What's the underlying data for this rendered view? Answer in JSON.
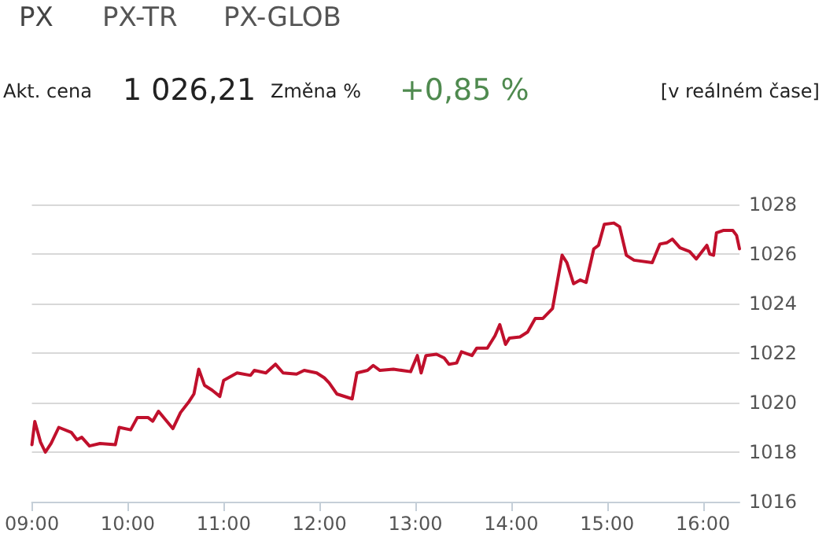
{
  "chart_data": {
    "type": "line",
    "title": "PX",
    "annotations": [
      "PX-TR",
      "PX-GLOB",
      "Akt. cena",
      "1 026,21",
      "Změna %",
      "+0,85 %",
      "[v reálném čase]"
    ],
    "series": [
      {
        "color": "#c0102c",
        "x": [
          9.0,
          9.03,
          9.09,
          9.14,
          9.2,
          9.28,
          9.41,
          9.47,
          9.52,
          9.6,
          9.71,
          9.87,
          9.91,
          10.03,
          10.1,
          10.21,
          10.26,
          10.32,
          10.47,
          10.55,
          10.64,
          10.69,
          10.74,
          10.8,
          10.88,
          10.96,
          11.0,
          11.14,
          11.28,
          11.32,
          11.44,
          11.54,
          11.62,
          11.76,
          11.84,
          11.97,
          12.05,
          12.1,
          12.18,
          12.34,
          12.39,
          12.5,
          12.56,
          12.63,
          12.77,
          12.95,
          13.02,
          13.06,
          13.11,
          13.22,
          13.3,
          13.35,
          13.43,
          13.48,
          13.59,
          13.64,
          13.75,
          13.83,
          13.88,
          13.94,
          13.98,
          14.09,
          14.17,
          14.25,
          14.33,
          14.43,
          14.53,
          14.58,
          14.65,
          14.72,
          14.78,
          14.86,
          14.91,
          14.97,
          15.07,
          15.13,
          15.2,
          15.28,
          15.47,
          15.55,
          15.62,
          15.68,
          15.76,
          15.86,
          15.93,
          16.04,
          16.07,
          16.11,
          16.14,
          16.21,
          16.31,
          16.35,
          16.38
        ],
        "values": [
          1018.3,
          1019.24,
          1018.4,
          1018.0,
          1018.35,
          1019.0,
          1018.8,
          1018.5,
          1018.6,
          1018.25,
          1018.35,
          1018.3,
          1019.0,
          1018.9,
          1019.4,
          1019.4,
          1019.25,
          1019.65,
          1018.95,
          1019.6,
          1020.05,
          1020.35,
          1021.35,
          1020.7,
          1020.5,
          1020.25,
          1020.9,
          1021.2,
          1021.1,
          1021.3,
          1021.2,
          1021.55,
          1021.2,
          1021.15,
          1021.3,
          1021.2,
          1021.0,
          1020.8,
          1020.35,
          1020.15,
          1021.2,
          1021.3,
          1021.5,
          1021.3,
          1021.35,
          1021.25,
          1021.9,
          1021.2,
          1021.9,
          1021.95,
          1021.8,
          1021.55,
          1021.6,
          1022.05,
          1021.9,
          1022.2,
          1022.2,
          1022.7,
          1023.15,
          1022.35,
          1022.6,
          1022.65,
          1022.85,
          1023.4,
          1023.4,
          1023.8,
          1025.95,
          1025.65,
          1024.8,
          1024.95,
          1024.85,
          1026.2,
          1026.35,
          1027.2,
          1027.25,
          1027.1,
          1025.95,
          1025.75,
          1025.65,
          1026.4,
          1026.45,
          1026.6,
          1026.25,
          1026.1,
          1025.8,
          1026.35,
          1026.0,
          1025.95,
          1026.85,
          1026.95,
          1026.95,
          1026.75,
          1026.21
        ]
      }
    ],
    "xlim": [
      9,
      16.38
    ],
    "xticks": [
      {
        "value": 9,
        "label": "09:00"
      },
      {
        "value": 10,
        "label": "10:00"
      },
      {
        "value": 11,
        "label": "11:00"
      },
      {
        "value": 12,
        "label": "12:00"
      },
      {
        "value": 13,
        "label": "13:00"
      },
      {
        "value": 14,
        "label": "14:00"
      },
      {
        "value": 15,
        "label": "15:00"
      },
      {
        "value": 16,
        "label": "16:00"
      }
    ],
    "ylim": [
      1016,
      1028
    ],
    "yticks": [
      1016,
      1018,
      1020,
      1022,
      1024,
      1026,
      1028
    ],
    "grid": "y",
    "marker": "none",
    "line_style": "solid"
  }
}
